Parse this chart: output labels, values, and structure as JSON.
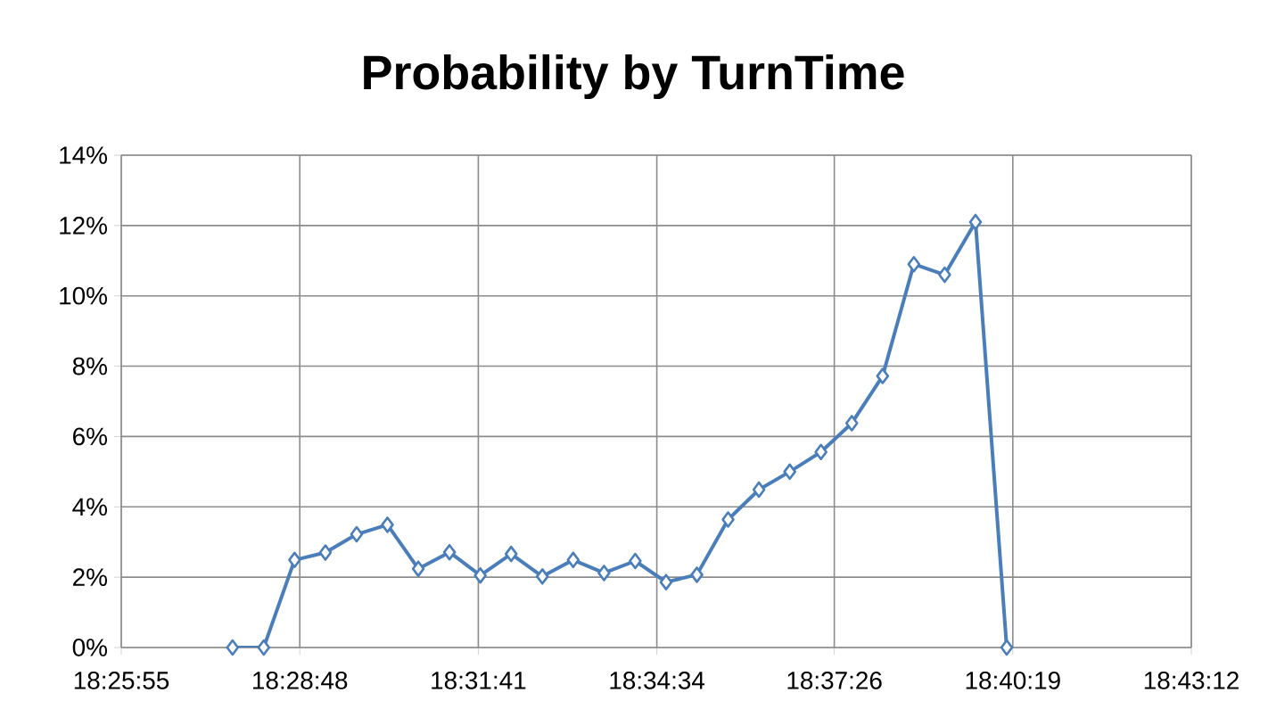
{
  "chart_data": {
    "type": "line",
    "title": "Probability by TurnTime",
    "x": [
      18.4619,
      18.4703,
      18.4786,
      18.4869,
      18.4953,
      18.5036,
      18.5119,
      18.5203,
      18.5286,
      18.5369,
      18.5453,
      18.5536,
      18.5619,
      18.5703,
      18.5786,
      18.5869,
      18.5953,
      18.6036,
      18.6119,
      18.6203,
      18.6286,
      18.6369,
      18.6453,
      18.6536,
      18.6619,
      18.6703
    ],
    "series": [
      {
        "color": "#4a7ebb",
        "values": [
          0,
          0,
          2.49,
          2.7,
          3.22,
          3.49,
          2.24,
          2.71,
          2.05,
          2.66,
          2.02,
          2.49,
          2.12,
          2.46,
          1.86,
          2.07,
          3.64,
          4.49,
          5.0,
          5.56,
          6.38,
          7.72,
          10.9,
          10.6,
          12.1,
          0
        ]
      }
    ],
    "xlim": [
      18.431944,
      18.72
    ],
    "ylim": [
      0,
      14
    ],
    "xticks": [
      {
        "value": 18.431944,
        "label": "18:25:55"
      },
      {
        "value": 18.48,
        "label": "18:28:48"
      },
      {
        "value": 18.528056,
        "label": "18:31:41"
      },
      {
        "value": 18.576111,
        "label": "18:34:34"
      },
      {
        "value": 18.623889,
        "label": "18:37:26"
      },
      {
        "value": 18.671944,
        "label": "18:40:19"
      },
      {
        "value": 18.72,
        "label": "18:43:12"
      }
    ],
    "yticks": [
      {
        "value": 0,
        "label": "0%"
      },
      {
        "value": 2,
        "label": "2%"
      },
      {
        "value": 4,
        "label": "4%"
      },
      {
        "value": 6,
        "label": "6%"
      },
      {
        "value": 8,
        "label": "8%"
      },
      {
        "value": 10,
        "label": "10%"
      },
      {
        "value": 12,
        "label": "12%"
      },
      {
        "value": 14,
        "label": "14%"
      }
    ],
    "grid": true,
    "marker": "diamond",
    "line_style": "solid"
  }
}
